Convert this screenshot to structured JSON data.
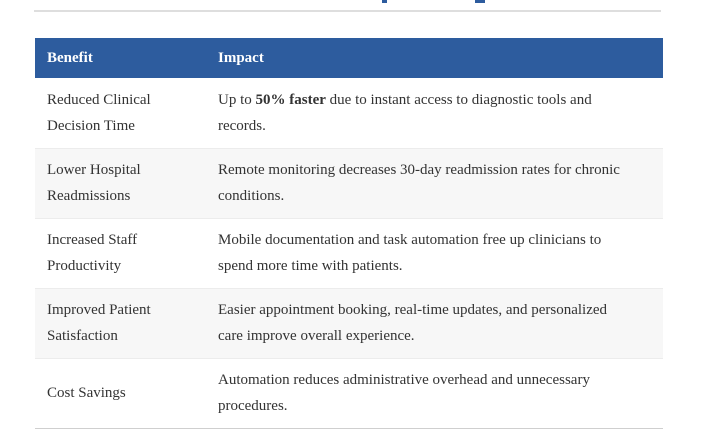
{
  "page": {
    "cut_off_heading_fragments": "partial blue text descenders at top edge",
    "colors": {
      "header_bg": "#2d5c9e",
      "header_text": "#ffffff",
      "row_alt_bg": "#f7f7f7",
      "body_text": "#333333",
      "table_bottom_border": "#cfcfcf",
      "top_rule": "#dedede",
      "fragment_blue": "#2d5c9e"
    }
  },
  "table": {
    "header": {
      "benefit": "Benefit",
      "impact": "Impact"
    },
    "rows": [
      {
        "benefit": "Reduced Clinical\nDecision Time",
        "impact_segments": [
          {
            "text": "Up to ",
            "bold": false
          },
          {
            "text": "50% faster",
            "bold": true
          },
          {
            "text": " due to instant access to diagnostic tools and\nrecords.",
            "bold": false
          }
        ]
      },
      {
        "benefit": "Lower Hospital\nReadmissions",
        "impact_segments": [
          {
            "text": "Remote monitoring decreases 30-day readmission rates for chronic\nconditions.",
            "bold": false
          }
        ]
      },
      {
        "benefit": "Increased Staff\nProductivity",
        "impact_segments": [
          {
            "text": "Mobile documentation and task automation free up clinicians to\nspend more time with patients.",
            "bold": false
          }
        ]
      },
      {
        "benefit": "Improved Patient\nSatisfaction",
        "impact_segments": [
          {
            "text": "Easier appointment booking, real-time updates, and personalized\ncare improve overall experience.",
            "bold": false
          }
        ]
      },
      {
        "benefit": "Cost Savings",
        "impact_segments": [
          {
            "text": "Automation reduces administrative overhead and unnecessary\nprocedures.",
            "bold": false
          }
        ]
      }
    ]
  }
}
